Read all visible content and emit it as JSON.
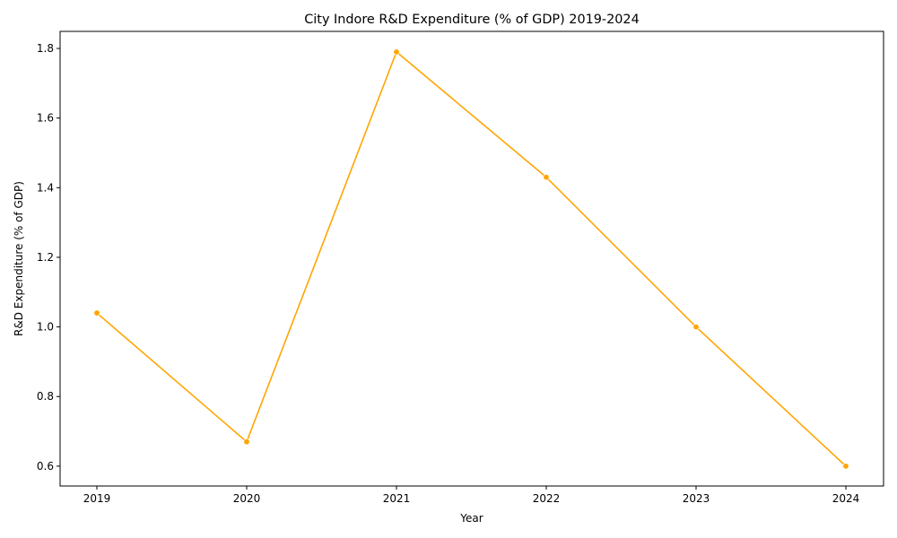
{
  "chart_data": {
    "type": "line",
    "title": "City Indore R&D Expenditure (% of GDP) 2019-2024",
    "xlabel": "Year",
    "ylabel": "R&D Expenditure (% of GDP)",
    "x": [
      "2019",
      "2020",
      "2021",
      "2022",
      "2023",
      "2024"
    ],
    "series": [
      {
        "values": [
          1.04,
          0.67,
          1.79,
          1.43,
          1.0,
          0.6
        ],
        "color": "#ffa500"
      }
    ],
    "y_ticks": [
      "0.6",
      "0.8",
      "1.0",
      "1.2",
      "1.4",
      "1.6",
      "1.8"
    ],
    "ylim": [
      0.543,
      1.849
    ],
    "grid": false,
    "markers": true
  }
}
